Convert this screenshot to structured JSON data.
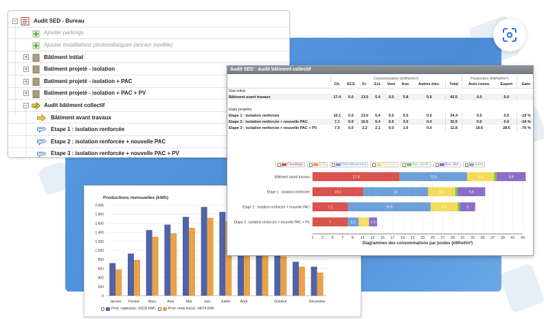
{
  "tree": {
    "header": "",
    "items": [
      {
        "label": "Audit SED - Bureau",
        "indent": 0,
        "expander": "−",
        "icon": "document-list-icon",
        "style": "bold"
      },
      {
        "label": "Ajouter parkings",
        "indent": 1,
        "expander": "",
        "icon": "add-parking-icon",
        "style": "light"
      },
      {
        "label": "Ajouter installations photovoltaïques (ancien modèle)",
        "indent": 1,
        "expander": "",
        "icon": "add-pv-icon",
        "style": "light"
      },
      {
        "label": "Bâtiment initial",
        "indent": 1,
        "expander": "+",
        "icon": "building-icon",
        "style": "bold"
      },
      {
        "label": "Batiment projeté - isolation",
        "indent": 1,
        "expander": "+",
        "icon": "building-icon",
        "style": "bold"
      },
      {
        "label": "Batiment projeté - isolation + PAC",
        "indent": 1,
        "expander": "+",
        "icon": "building-icon",
        "style": "bold"
      },
      {
        "label": "Batiment projeté - isolation + PAC + PV",
        "indent": 1,
        "expander": "+",
        "icon": "building-icon",
        "style": "bold"
      },
      {
        "label": "Audit bâtiment collectif",
        "indent": 1,
        "expander": "−",
        "icon": "audit-arrow-icon",
        "style": "bold"
      },
      {
        "label": "Bâtiment avant travaux",
        "indent": 2,
        "expander": "",
        "icon": "step-arrow-icon",
        "style": "bold"
      },
      {
        "label": "Etape 1 : isolation renforcée",
        "indent": 2,
        "expander": "",
        "icon": "step-icon",
        "style": "bold"
      },
      {
        "label": "Etape 2 : isolation renforcée + nouvelle PAC",
        "indent": 2,
        "expander": "",
        "icon": "step-icon",
        "style": "bold"
      },
      {
        "label": "Etape 3 : isolation renforcée + nouvelle PAC + PV",
        "indent": 2,
        "expander": "",
        "icon": "step-icon",
        "style": "bold"
      }
    ]
  },
  "audit": {
    "title": "Audit SED : Audit bâtiment collectif",
    "group_consumption": "Consommation (kWhef/m²)",
    "group_production": "Production (kWhef/m²)",
    "columns": [
      "Ch.",
      "ECS",
      "Fr.",
      "Ecl.",
      "Vent",
      "Aux.",
      "Autres élec.",
      "Total",
      "Auto conso.",
      "Export",
      "Gain"
    ],
    "section_initial": "Etat initial",
    "section_projected": "États projetés",
    "rows": [
      {
        "label": "Bâtiment avant travaux",
        "values": [
          "17.4",
          "0.0",
          "13.5",
          "5.4",
          "0.5",
          "5.8",
          "0.0",
          "42.5",
          "0.0",
          "0.0",
          ""
        ]
      },
      {
        "label": "Etape 1 : isolation renforcée",
        "values": [
          "10.1",
          "0.0",
          "13.0",
          "5.4",
          "0.5",
          "5.5",
          "0.0",
          "34.4",
          "0.0",
          "0.0",
          "-19 %"
        ]
      },
      {
        "label": "Etape 2 : isolation renforcée + nouvelle PAC",
        "values": [
          "7.1",
          "0.0",
          "16.5",
          "5.4",
          "0.5",
          "3.0",
          "0.0",
          "32.5",
          "0.0",
          "0.0",
          "-24 %"
        ]
      },
      {
        "label": "Etape 3 : isolation renforcée + nouvelle PAC + PV",
        "values": [
          "7.0",
          "0.0",
          "2.2",
          "2.1",
          "0.0",
          "1.6",
          "0.0",
          "12.8",
          "19.6",
          "28.5",
          "-70 %"
        ]
      }
    ]
  },
  "chart_data": [
    {
      "type": "bar",
      "orientation": "horizontal",
      "stacked": true,
      "title": "",
      "xlabel": "Diagrammes des consommations par postes (kWhef/m²)",
      "xlim": [
        1,
        43
      ],
      "xticks": [
        "1",
        "3",
        "5",
        "7",
        "9",
        "11",
        "13",
        "15",
        "17",
        "19",
        "21",
        "23",
        "25",
        "27",
        "29",
        "31",
        "33",
        "35",
        "37",
        "39",
        "41",
        "43"
      ],
      "categories": [
        "Bâtiment avant travaux",
        "Etape 1 : isolation renforcée",
        "Etape 2 : isolation renforcée + nouvelle PAC",
        "Etape 3 : isolation renforcée + nouvelle PAC + PV"
      ],
      "series": [
        {
          "name": "Chauffage",
          "color": "#d9534f",
          "values": [
            17.4,
            10.1,
            7.1,
            7.0
          ],
          "labels": [
            "17.4",
            "10.1",
            "7.1",
            "7"
          ]
        },
        {
          "name": "ECS",
          "color": "#f0953a",
          "values": [
            0,
            0,
            0,
            0
          ],
          "labels": [
            "",
            "",
            "",
            ""
          ]
        },
        {
          "name": "Refroidissement",
          "color": "#6f9fd8",
          "values": [
            13.5,
            13.0,
            16.5,
            2.2
          ],
          "labels": [
            "13.5",
            "13",
            "16.5",
            "2.2"
          ]
        },
        {
          "name": "Éclairage",
          "color": "#f4dc5a",
          "values": [
            5.4,
            5.4,
            5.4,
            2.1
          ],
          "labels": [
            "5.4",
            "5.4",
            "5.4",
            "2.1"
          ]
        },
        {
          "name": "Aux. ventil.",
          "color": "#7cbf5a",
          "values": [
            0.5,
            0.5,
            0.5,
            0
          ],
          "labels": [
            "",
            "",
            "",
            ""
          ]
        },
        {
          "name": "Aux. dist.",
          "color": "#8e6cc9",
          "values": [
            5.8,
            5.5,
            3.0,
            1.6
          ],
          "labels": [
            "5.8",
            "5.5",
            "3",
            "1.6"
          ]
        },
        {
          "name": "Autre",
          "color": "#9aa6b2",
          "values": [
            0,
            0,
            0,
            0
          ],
          "labels": [
            "",
            "",
            "",
            ""
          ]
        }
      ],
      "legend": "top"
    },
    {
      "type": "bar",
      "title": "Productions mensuelles (kWh)",
      "categories": [
        "Janvier",
        "Février",
        "Mars",
        "Avril",
        "Mai",
        "Juin",
        "Juillet",
        "Août",
        "Septembre",
        "Octobre",
        "Novembre",
        "Décembre"
      ],
      "xticks_shown": [
        "Janvier",
        "Février",
        "Mars",
        "Avril",
        "Mai",
        "Juin",
        "Juillet",
        "Août",
        "",
        "Octobre",
        "",
        "Décembre"
      ],
      "ylim": [
        0,
        2000
      ],
      "yticks": [
        "0",
        "200",
        "400",
        "600",
        "800",
        "1 000",
        "1 200",
        "1 400",
        "1 600",
        "1 800",
        "2 000"
      ],
      "series": [
        {
          "name": "Prod. capteur(s): 16225 kWh",
          "color": "#4f63a6",
          "values": [
            720,
            930,
            1450,
            1570,
            1740,
            1960,
            1850,
            1700,
            1200,
            1000,
            750,
            640
          ]
        },
        {
          "name": "Prod. ondu eur(s): 14074 kWh",
          "color": "#e9a14a",
          "values": [
            580,
            790,
            1300,
            1380,
            1500,
            1720,
            1650,
            1500,
            1050,
            870,
            640,
            510
          ]
        }
      ],
      "grid": true,
      "legend": "bottom-left"
    }
  ]
}
